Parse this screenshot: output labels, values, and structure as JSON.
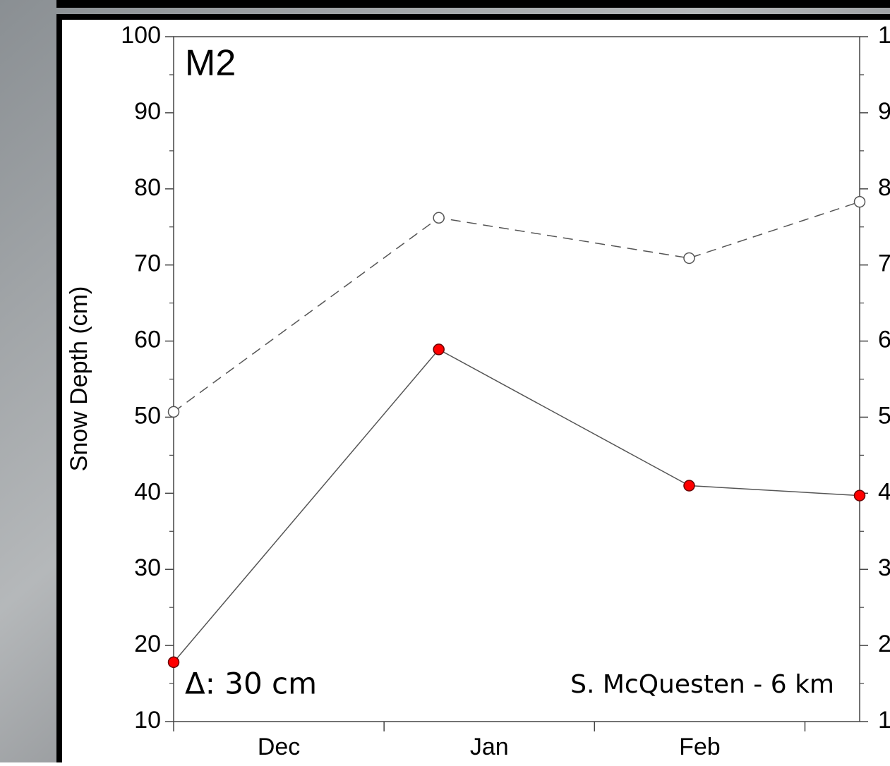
{
  "chart_data": {
    "type": "line",
    "panel_label": "M2",
    "ylabel": "Snow Depth (cm)",
    "annotations": [
      "Δ: 30 cm",
      "S. McQuesten - 6 km"
    ],
    "x": [
      0,
      1.26,
      2.45,
      3.26
    ],
    "xlim": [
      0,
      3.26
    ],
    "xticks": [
      0,
      1,
      2,
      3
    ],
    "month_labels": [
      "Dec",
      "Jan",
      "Feb"
    ],
    "series": [
      {
        "color": "#ffffff",
        "line_color": "#555555",
        "dashed": true,
        "values": [
          50.7,
          76.2,
          70.9,
          78.3
        ]
      },
      {
        "color": "#ff0000",
        "line_color": "#555555",
        "dashed": false,
        "values": [
          17.8,
          58.9,
          41.0,
          39.7
        ]
      }
    ],
    "ylim": [
      10,
      100
    ],
    "yticks": [
      10,
      20,
      30,
      40,
      50,
      60,
      70,
      80,
      90,
      100
    ],
    "right_axis": true
  }
}
